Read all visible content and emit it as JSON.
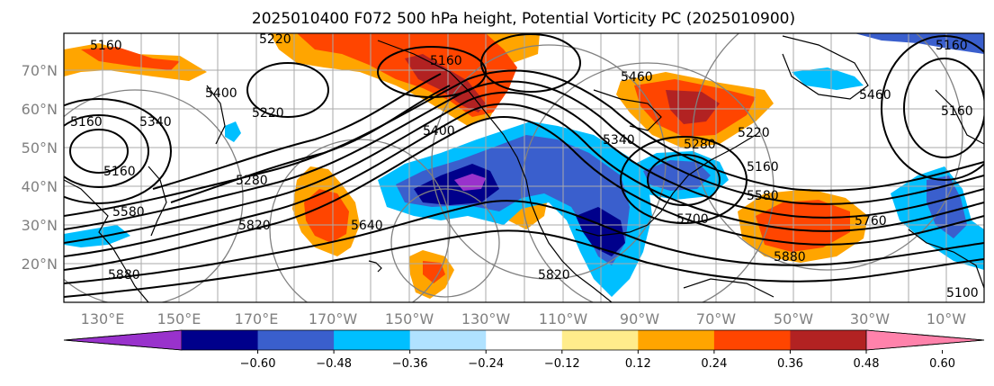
{
  "title": "2025010400 F072 500 hPa height, Potential Vorticity PC (2025010900)",
  "lat_labels": [
    "70°N",
    "60°N",
    "50°N",
    "40°N",
    "30°N",
    "20°N"
  ],
  "lon_labels": [
    "130°E",
    "150°E",
    "170°E",
    "170°W",
    "150°W",
    "130°W",
    "110°W",
    "90°W",
    "70°W",
    "50°W",
    "30°W",
    "10°W"
  ],
  "contour_labels": [
    "5160",
    "5220",
    "5340",
    "5400",
    "5160",
    "5160",
    "5160",
    "5220",
    "5400",
    "5280",
    "5820",
    "5640",
    "5820",
    "5580",
    "5880",
    "5340",
    "5460",
    "5280",
    "5220",
    "5160",
    "5700",
    "5580",
    "5880",
    "5760",
    "5460",
    "5160",
    "5160",
    "5100"
  ],
  "colorbar": {
    "ticks": [
      "−0.60",
      "−0.48",
      "−0.36",
      "−0.24",
      "−0.12",
      "0.12",
      "0.24",
      "0.36",
      "0.48",
      "0.60"
    ],
    "colors": [
      "#9932cc",
      "#00008b",
      "#3a5fcd",
      "#00bfff",
      "#b0e2ff",
      "#ffffff",
      "#ffec8b",
      "#ffa500",
      "#ff4500",
      "#b22222",
      "#ff82ab"
    ]
  },
  "colors": {
    "grid": "#aaaaaa",
    "axis_text": "#808080",
    "height_contour": "#000000",
    "circle": "#808080"
  }
}
